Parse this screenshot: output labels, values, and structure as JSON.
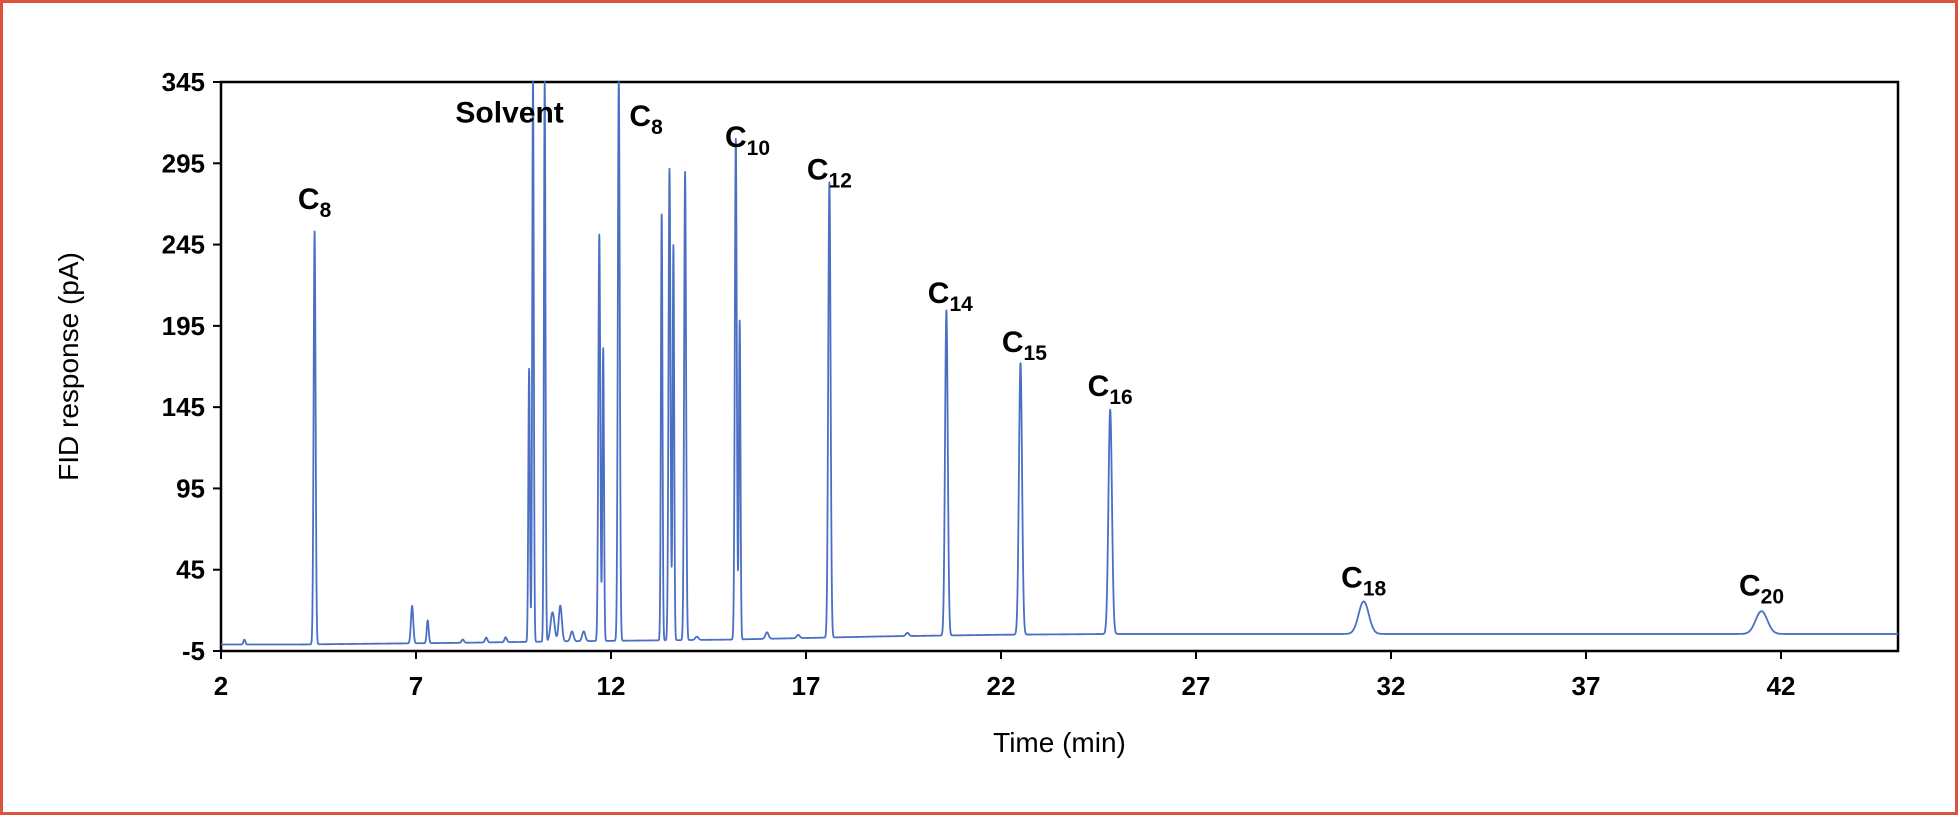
{
  "chart_data": {
    "type": "line",
    "title": "",
    "xlabel": "Time (min)",
    "ylabel": "FID response (pA)",
    "xlim": [
      2,
      45
    ],
    "ylim": [
      -5,
      345
    ],
    "xticks": [
      2,
      7,
      12,
      17,
      22,
      27,
      32,
      37,
      42
    ],
    "yticks": [
      -5,
      45,
      95,
      145,
      195,
      245,
      295,
      345
    ],
    "series_color": "#4a6fc4",
    "baseline": [
      {
        "x": 2.0,
        "y": -1
      },
      {
        "x": 4.0,
        "y": -1
      },
      {
        "x": 6.0,
        "y": -0.5
      },
      {
        "x": 8.0,
        "y": 0
      },
      {
        "x": 9.5,
        "y": 0.5
      },
      {
        "x": 11.0,
        "y": 1
      },
      {
        "x": 13.0,
        "y": 1.5
      },
      {
        "x": 15.0,
        "y": 2
      },
      {
        "x": 17.0,
        "y": 3
      },
      {
        "x": 19.0,
        "y": 4
      },
      {
        "x": 22.0,
        "y": 5
      },
      {
        "x": 25.0,
        "y": 5.5
      },
      {
        "x": 30.0,
        "y": 5.5
      },
      {
        "x": 45.0,
        "y": 5.5
      }
    ],
    "peaks": [
      {
        "x": 2.6,
        "height": 3,
        "width": 0.025
      },
      {
        "x": 4.4,
        "height": 254,
        "width": 0.025
      },
      {
        "x": 6.9,
        "height": 23,
        "width": 0.03
      },
      {
        "x": 7.3,
        "height": 14,
        "width": 0.025
      },
      {
        "x": 8.2,
        "height": 2,
        "width": 0.03
      },
      {
        "x": 8.8,
        "height": 3,
        "width": 0.03
      },
      {
        "x": 9.3,
        "height": 3,
        "width": 0.03
      },
      {
        "x": 9.9,
        "height": 168,
        "width": 0.02
      },
      {
        "x": 10.0,
        "height": 345,
        "width": 0.02
      },
      {
        "x": 10.3,
        "height": 345,
        "width": 0.02
      },
      {
        "x": 10.5,
        "height": 18,
        "width": 0.05
      },
      {
        "x": 10.7,
        "height": 22,
        "width": 0.04
      },
      {
        "x": 11.0,
        "height": 6,
        "width": 0.04
      },
      {
        "x": 11.3,
        "height": 6,
        "width": 0.04
      },
      {
        "x": 11.7,
        "height": 250,
        "width": 0.025
      },
      {
        "x": 11.8,
        "height": 180,
        "width": 0.02
      },
      {
        "x": 12.2,
        "height": 345,
        "width": 0.025
      },
      {
        "x": 13.3,
        "height": 262,
        "width": 0.02
      },
      {
        "x": 13.5,
        "height": 290,
        "width": 0.025
      },
      {
        "x": 13.6,
        "height": 243,
        "width": 0.02
      },
      {
        "x": 13.9,
        "height": 288,
        "width": 0.025
      },
      {
        "x": 14.2,
        "height": 2,
        "width": 0.04
      },
      {
        "x": 15.2,
        "height": 308,
        "width": 0.025
      },
      {
        "x": 15.3,
        "height": 196,
        "width": 0.02
      },
      {
        "x": 16.0,
        "height": 4,
        "width": 0.04
      },
      {
        "x": 16.8,
        "height": 2,
        "width": 0.04
      },
      {
        "x": 17.6,
        "height": 280,
        "width": 0.03
      },
      {
        "x": 19.6,
        "height": 2,
        "width": 0.04
      },
      {
        "x": 20.6,
        "height": 200,
        "width": 0.035
      },
      {
        "x": 22.5,
        "height": 167,
        "width": 0.04
      },
      {
        "x": 24.8,
        "height": 138,
        "width": 0.045
      },
      {
        "x": 31.3,
        "height": 20,
        "width": 0.13
      },
      {
        "x": 41.5,
        "height": 14,
        "width": 0.15
      }
    ],
    "annotations": [
      {
        "id": "solvent",
        "base": "Solvent",
        "sub": "",
        "x": 9.4,
        "y": 320
      },
      {
        "id": "c8-early",
        "base": "C",
        "sub": "8",
        "x": 4.4,
        "y": 267
      },
      {
        "id": "c8",
        "base": "C",
        "sub": "8",
        "x": 12.9,
        "y": 318
      },
      {
        "id": "c10",
        "base": "C",
        "sub": "10",
        "x": 15.5,
        "y": 305
      },
      {
        "id": "c12",
        "base": "C",
        "sub": "12",
        "x": 17.6,
        "y": 285
      },
      {
        "id": "c14",
        "base": "C",
        "sub": "14",
        "x": 20.7,
        "y": 209
      },
      {
        "id": "c15",
        "base": "C",
        "sub": "15",
        "x": 22.6,
        "y": 179
      },
      {
        "id": "c16",
        "base": "C",
        "sub": "16",
        "x": 24.8,
        "y": 152
      },
      {
        "id": "c18",
        "base": "C",
        "sub": "18",
        "x": 31.3,
        "y": 34
      },
      {
        "id": "c20",
        "base": "C",
        "sub": "20",
        "x": 41.5,
        "y": 29
      }
    ]
  }
}
